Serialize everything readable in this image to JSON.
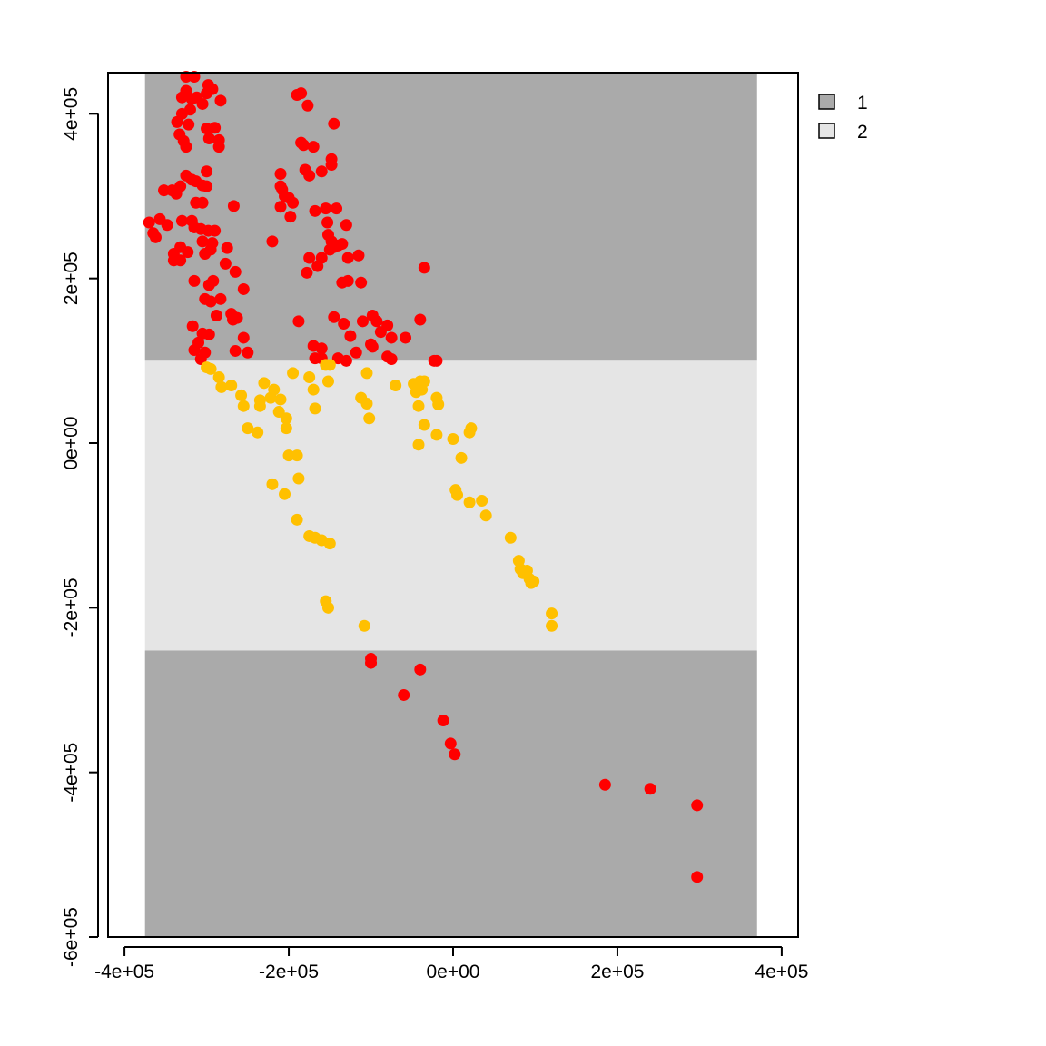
{
  "chart_data": {
    "type": "scatter",
    "xlim": [
      -420000,
      420000
    ],
    "ylim": [
      -600000,
      450000
    ],
    "x_ticks": [
      -400000,
      -200000,
      0,
      200000,
      400000
    ],
    "x_tick_labels": [
      "-4e+05",
      "-2e+05",
      "0e+00",
      "2e+05",
      "4e+05"
    ],
    "y_ticks": [
      -600000,
      -400000,
      -200000,
      0,
      200000,
      400000
    ],
    "y_tick_labels": [
      "-6e+05",
      "-4e+05",
      "-2e+05",
      "0e+00",
      "2e+05",
      "4e+05"
    ],
    "grid": false,
    "legend_position": "top-right, outside plot",
    "legend": [
      {
        "label": "1",
        "color": "#aaaaaa"
      },
      {
        "label": "2",
        "color": "#e5e5e5"
      }
    ],
    "raster_zones": [
      {
        "class": "1",
        "color": "#aaaaaa",
        "xmin": -375000,
        "xmax": 370000,
        "ymin": 100000,
        "ymax": 450000
      },
      {
        "class": "2",
        "color": "#e5e5e5",
        "xmin": -375000,
        "xmax": 370000,
        "ymin": -252000,
        "ymax": 100000
      },
      {
        "class": "1",
        "color": "#aaaaaa",
        "xmin": -375000,
        "xmax": 370000,
        "ymin": -600000,
        "ymax": -252000
      }
    ],
    "series": [
      {
        "color": "#ff0000",
        "points": [
          [
            -325000,
            445000
          ],
          [
            -315000,
            445000
          ],
          [
            -325000,
            428000
          ],
          [
            -330000,
            420000
          ],
          [
            -318000,
            418000
          ],
          [
            -312000,
            420000
          ],
          [
            -300000,
            425000
          ],
          [
            -298000,
            435000
          ],
          [
            -293000,
            430000
          ],
          [
            -283000,
            416000
          ],
          [
            -305000,
            412000
          ],
          [
            -320000,
            405000
          ],
          [
            -330000,
            400000
          ],
          [
            -336000,
            390000
          ],
          [
            -322000,
            387000
          ],
          [
            -300000,
            382000
          ],
          [
            -290000,
            383000
          ],
          [
            -297000,
            370000
          ],
          [
            -285000,
            368000
          ],
          [
            -285000,
            360000
          ],
          [
            -325000,
            360000
          ],
          [
            -328000,
            367000
          ],
          [
            -333000,
            375000
          ],
          [
            -325000,
            325000
          ],
          [
            -318000,
            320000
          ],
          [
            -313000,
            318000
          ],
          [
            -332000,
            312000
          ],
          [
            -305000,
            313000
          ],
          [
            -300000,
            312000
          ],
          [
            -342000,
            307000
          ],
          [
            -352000,
            307000
          ],
          [
            -337000,
            303000
          ],
          [
            -300000,
            330000
          ],
          [
            -313000,
            292000
          ],
          [
            -305000,
            292000
          ],
          [
            -370000,
            268000
          ],
          [
            -365000,
            255000
          ],
          [
            -362000,
            250000
          ],
          [
            -357000,
            272000
          ],
          [
            -348000,
            265000
          ],
          [
            -330000,
            270000
          ],
          [
            -318000,
            270000
          ],
          [
            -315000,
            262000
          ],
          [
            -307000,
            260000
          ],
          [
            -298000,
            258000
          ],
          [
            -290000,
            258000
          ],
          [
            -267000,
            288000
          ],
          [
            -340000,
            230000
          ],
          [
            -340000,
            222000
          ],
          [
            -332000,
            238000
          ],
          [
            -323000,
            232000
          ],
          [
            -305000,
            245000
          ],
          [
            -293000,
            243000
          ],
          [
            -275000,
            237000
          ],
          [
            -277000,
            218000
          ],
          [
            -302000,
            230000
          ],
          [
            -295000,
            235000
          ],
          [
            -332000,
            222000
          ],
          [
            -315000,
            197000
          ],
          [
            -297000,
            192000
          ],
          [
            -292000,
            197000
          ],
          [
            -283000,
            175000
          ],
          [
            -265000,
            208000
          ],
          [
            -255000,
            187000
          ],
          [
            -302000,
            175000
          ],
          [
            -295000,
            172000
          ],
          [
            -270000,
            157000
          ],
          [
            -288000,
            155000
          ],
          [
            -263000,
            152000
          ],
          [
            -268000,
            150000
          ],
          [
            -317000,
            142000
          ],
          [
            -305000,
            133000
          ],
          [
            -297000,
            132000
          ],
          [
            -255000,
            128000
          ],
          [
            -265000,
            112000
          ],
          [
            -315000,
            113000
          ],
          [
            -307000,
            102000
          ],
          [
            -302000,
            110000
          ],
          [
            -310000,
            122000
          ],
          [
            -250000,
            110000
          ],
          [
            -185000,
            425000
          ],
          [
            -190000,
            423000
          ],
          [
            -177000,
            410000
          ],
          [
            -145000,
            388000
          ],
          [
            -185000,
            365000
          ],
          [
            -182000,
            362000
          ],
          [
            -170000,
            360000
          ],
          [
            -148000,
            345000
          ],
          [
            -148000,
            338000
          ],
          [
            -160000,
            330000
          ],
          [
            -180000,
            332000
          ],
          [
            -175000,
            325000
          ],
          [
            -210000,
            327000
          ],
          [
            -210000,
            312000
          ],
          [
            -208000,
            308000
          ],
          [
            -205000,
            300000
          ],
          [
            -200000,
            298000
          ],
          [
            -210000,
            287000
          ],
          [
            -195000,
            292000
          ],
          [
            -198000,
            275000
          ],
          [
            -168000,
            282000
          ],
          [
            -155000,
            285000
          ],
          [
            -142000,
            285000
          ],
          [
            -130000,
            265000
          ],
          [
            -153000,
            268000
          ],
          [
            -220000,
            245000
          ],
          [
            -152000,
            253000
          ],
          [
            -148000,
            245000
          ],
          [
            -145000,
            238000
          ],
          [
            -140000,
            240000
          ],
          [
            -135000,
            242000
          ],
          [
            -150000,
            235000
          ],
          [
            -128000,
            225000
          ],
          [
            -115000,
            228000
          ],
          [
            -160000,
            225000
          ],
          [
            -175000,
            225000
          ],
          [
            -165000,
            215000
          ],
          [
            -178000,
            207000
          ],
          [
            -35000,
            213000
          ],
          [
            -128000,
            197000
          ],
          [
            -135000,
            195000
          ],
          [
            -112000,
            195000
          ],
          [
            -145000,
            153000
          ],
          [
            -133000,
            145000
          ],
          [
            -110000,
            148000
          ],
          [
            -98000,
            155000
          ],
          [
            -93000,
            148000
          ],
          [
            -80000,
            143000
          ],
          [
            -40000,
            150000
          ],
          [
            -188000,
            148000
          ],
          [
            -88000,
            135000
          ],
          [
            -75000,
            128000
          ],
          [
            -58000,
            128000
          ],
          [
            -100000,
            120000
          ],
          [
            -98000,
            117000
          ],
          [
            -125000,
            130000
          ],
          [
            -118000,
            110000
          ],
          [
            -80000,
            105000
          ],
          [
            -75000,
            102000
          ],
          [
            -20000,
            100000
          ],
          [
            -23000,
            100000
          ],
          [
            -170000,
            118000
          ],
          [
            -160000,
            115000
          ],
          [
            -168000,
            103000
          ],
          [
            -160000,
            103000
          ],
          [
            -140000,
            103000
          ],
          [
            -130000,
            100000
          ],
          [
            -100000,
            -262000
          ],
          [
            -100000,
            -267000
          ],
          [
            -40000,
            -275000
          ],
          [
            -60000,
            -306000
          ],
          [
            -12000,
            -337000
          ],
          [
            -3000,
            -365000
          ],
          [
            2000,
            -378000
          ],
          [
            185000,
            -415000
          ],
          [
            240000,
            -420000
          ],
          [
            297000,
            -440000
          ],
          [
            297000,
            -527000
          ]
        ]
      },
      {
        "color": "#ffc000",
        "points": [
          [
            -300000,
            92000
          ],
          [
            -295000,
            90000
          ],
          [
            -285000,
            80000
          ],
          [
            -282000,
            68000
          ],
          [
            -270000,
            70000
          ],
          [
            -258000,
            58000
          ],
          [
            -255000,
            45000
          ],
          [
            -250000,
            18000
          ],
          [
            -238000,
            13000
          ],
          [
            -235000,
            45000
          ],
          [
            -235000,
            52000
          ],
          [
            -230000,
            73000
          ],
          [
            -222000,
            55000
          ],
          [
            -218000,
            65000
          ],
          [
            -212000,
            38000
          ],
          [
            -210000,
            53000
          ],
          [
            -203000,
            30000
          ],
          [
            -203000,
            18000
          ],
          [
            -200000,
            -15000
          ],
          [
            -190000,
            -15000
          ],
          [
            -195000,
            85000
          ],
          [
            -220000,
            -50000
          ],
          [
            -205000,
            -62000
          ],
          [
            -190000,
            -93000
          ],
          [
            -188000,
            -43000
          ],
          [
            -175000,
            -113000
          ],
          [
            -168000,
            -115000
          ],
          [
            -160000,
            -118000
          ],
          [
            -150000,
            -122000
          ],
          [
            -155000,
            -192000
          ],
          [
            -152000,
            -200000
          ],
          [
            -175000,
            80000
          ],
          [
            -170000,
            65000
          ],
          [
            -168000,
            42000
          ],
          [
            -155000,
            95000
          ],
          [
            -150000,
            95000
          ],
          [
            -152000,
            75000
          ],
          [
            -112000,
            55000
          ],
          [
            -105000,
            48000
          ],
          [
            -102000,
            30000
          ],
          [
            -105000,
            85000
          ],
          [
            -108000,
            -222000
          ],
          [
            -70000,
            70000
          ],
          [
            -45000,
            62000
          ],
          [
            -48000,
            72000
          ],
          [
            -40000,
            75000
          ],
          [
            -35000,
            75000
          ],
          [
            -38000,
            65000
          ],
          [
            -42000,
            45000
          ],
          [
            -35000,
            22000
          ],
          [
            -42000,
            -2000
          ],
          [
            -20000,
            55000
          ],
          [
            -18000,
            47000
          ],
          [
            -20000,
            10000
          ],
          [
            0,
            5000
          ],
          [
            10000,
            -18000
          ],
          [
            20000,
            13000
          ],
          [
            22000,
            18000
          ],
          [
            3000,
            -57000
          ],
          [
            5000,
            -63000
          ],
          [
            20000,
            -72000
          ],
          [
            35000,
            -70000
          ],
          [
            40000,
            -88000
          ],
          [
            70000,
            -115000
          ],
          [
            80000,
            -143000
          ],
          [
            82000,
            -153000
          ],
          [
            85000,
            -158000
          ],
          [
            90000,
            -155000
          ],
          [
            93000,
            -165000
          ],
          [
            95000,
            -170000
          ],
          [
            98000,
            -168000
          ],
          [
            120000,
            -207000
          ],
          [
            120000,
            -222000
          ]
        ]
      }
    ]
  }
}
